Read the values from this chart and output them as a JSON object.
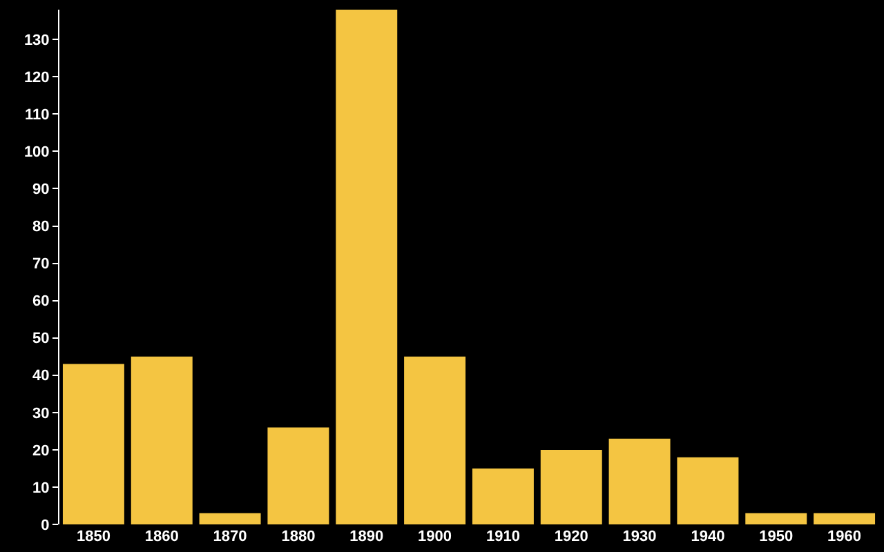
{
  "chart_data": {
    "type": "bar",
    "categories": [
      "1850",
      "1860",
      "1870",
      "1880",
      "1890",
      "1900",
      "1910",
      "1920",
      "1930",
      "1940",
      "1950",
      "1960"
    ],
    "values": [
      43,
      45,
      3,
      26,
      138,
      45,
      15,
      20,
      23,
      18,
      3,
      3
    ],
    "color": "#f4c542",
    "ylim": [
      0,
      138
    ],
    "yticks": [
      0,
      10,
      20,
      30,
      40,
      50,
      60,
      70,
      80,
      90,
      100,
      110,
      120,
      130
    ],
    "grid": false,
    "legend": false
  }
}
